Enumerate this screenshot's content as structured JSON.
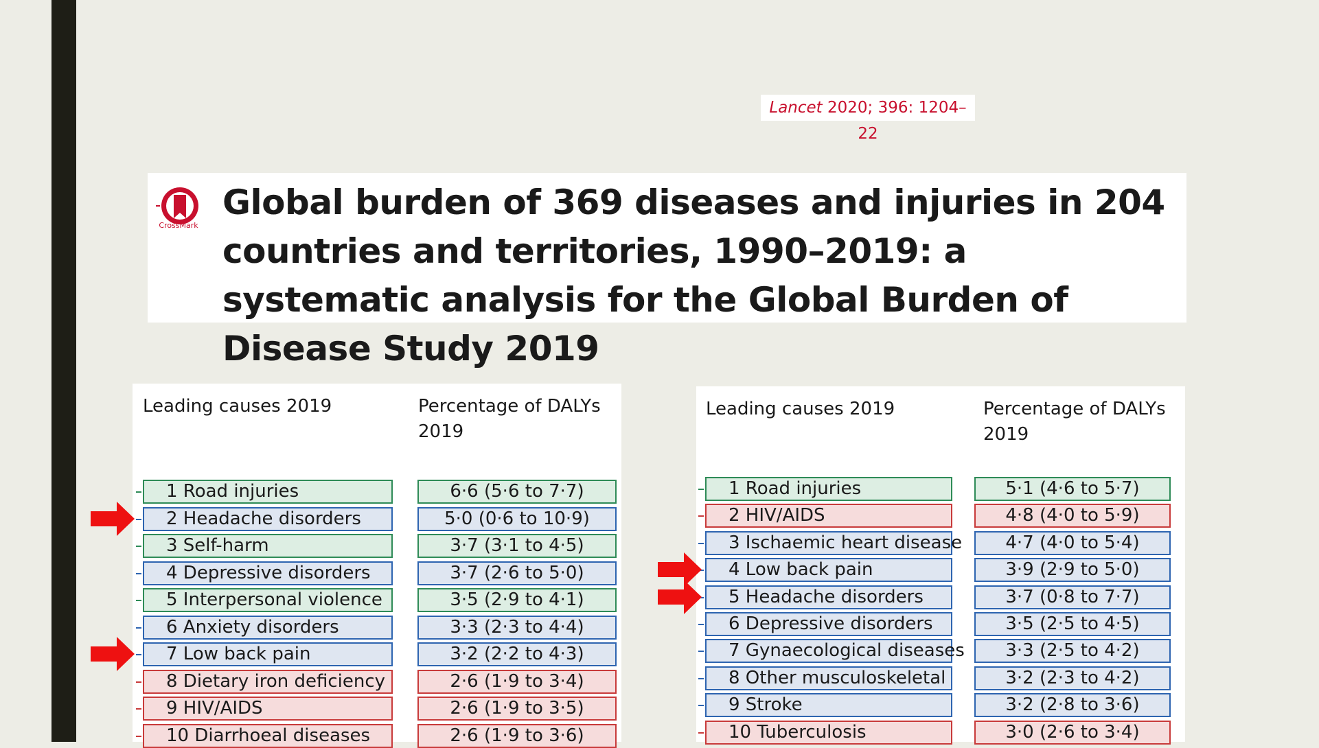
{
  "citation": {
    "journal": "Lancet",
    "ref": " 2020; 396: 1204–22",
    "logo_label": "CrossMark"
  },
  "title": "Global burden of 369 diseases and injuries in 204 countries and territories, 1990–2019: a systematic analysis for the Global Burden of Disease Study 2019",
  "colors": {
    "green": "#2e8b57",
    "blue": "#2d64b0",
    "red": "#c83a3a",
    "arrow": "#ee1111"
  },
  "tables": [
    {
      "col1": "Leading causes 2019",
      "col2": "Percentage of DALYs 2019",
      "rows": [
        {
          "name": "1 Road injuries",
          "value": "6·6 (5·6 to 7·7)",
          "color": "green"
        },
        {
          "name": "2 Headache disorders",
          "value": "5·0 (0·6 to 10·9)",
          "color": "blue"
        },
        {
          "name": "3 Self-harm",
          "value": "3·7 (3·1 to 4·5)",
          "color": "green"
        },
        {
          "name": "4 Depressive disorders",
          "value": "3·7 (2·6 to 5·0)",
          "color": "blue"
        },
        {
          "name": "5 Interpersonal violence",
          "value": "3·5 (2·9 to 4·1)",
          "color": "green"
        },
        {
          "name": "6 Anxiety disorders",
          "value": "3·3 (2·3 to 4·4)",
          "color": "blue"
        },
        {
          "name": "7 Low back pain",
          "value": "3·2 (2·2 to 4·3)",
          "color": "blue"
        },
        {
          "name": "8 Dietary iron deficiency",
          "value": "2·6 (1·9 to 3·4)",
          "color": "red"
        },
        {
          "name": "9 HIV/AIDS",
          "value": "2·6 (1·9 to 3·5)",
          "color": "red"
        },
        {
          "name": "10 Diarrhoeal diseases",
          "value": "2·6 (1·9 to 3·6)",
          "color": "red"
        }
      ]
    },
    {
      "col1": "Leading causes 2019",
      "col2": "Percentage of DALYs 2019",
      "rows": [
        {
          "name": "1 Road injuries",
          "value": "5·1 (4·6 to 5·7)",
          "color": "green"
        },
        {
          "name": "2 HIV/AIDS",
          "value": "4·8 (4·0 to 5·9)",
          "color": "red"
        },
        {
          "name": "3 Ischaemic heart disease",
          "value": "4·7 (4·0 to 5·4)",
          "color": "blue"
        },
        {
          "name": "4 Low back pain",
          "value": "3·9 (2·9 to 5·0)",
          "color": "blue"
        },
        {
          "name": "5 Headache disorders",
          "value": "3·7 (0·8 to 7·7)",
          "color": "blue"
        },
        {
          "name": "6 Depressive disorders",
          "value": "3·5 (2·5 to 4·5)",
          "color": "blue"
        },
        {
          "name": "7 Gynaecological diseases",
          "value": "3·3 (2·5 to 4·2)",
          "color": "blue"
        },
        {
          "name": "8 Other musculoskeletal",
          "value": "3·2 (2·3 to 4·2)",
          "color": "blue"
        },
        {
          "name": "9 Stroke",
          "value": "3·2 (2·8 to 3·6)",
          "color": "blue"
        },
        {
          "name": "10 Tuberculosis",
          "value": "3·0 (2·6 to 3·4)",
          "color": "red"
        }
      ]
    }
  ],
  "arrows": [
    {
      "table": 0,
      "row": 1
    },
    {
      "table": 0,
      "row": 6
    },
    {
      "table": 1,
      "row": 3
    },
    {
      "table": 1,
      "row": 4
    }
  ]
}
